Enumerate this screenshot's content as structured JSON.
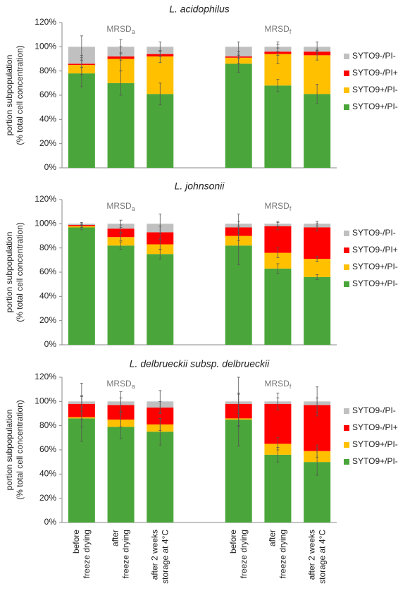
{
  "categories": [
    [
      "before",
      "freeze drying"
    ],
    [
      "after",
      "freeze drying"
    ],
    [
      "after 2 weeks",
      "storage at 4°C"
    ],
    null,
    [
      "before",
      "freeze drying"
    ],
    [
      "after",
      "freeze drying"
    ],
    [
      "after 2 weeks",
      "storage at 4°C"
    ]
  ],
  "chart_data": [
    {
      "type": "bar",
      "stacked": true,
      "title": "L. acidophilus",
      "ylabel": [
        "portion subpopulation",
        "(% total cell concentration)"
      ],
      "group_labels": [
        {
          "base": "MRSD",
          "subscript": "a"
        },
        {
          "base": "MRSD",
          "subscript": "f"
        }
      ],
      "ylim": [
        0,
        120
      ],
      "yticks": [
        {
          "value": 0,
          "label": "0%"
        },
        {
          "value": 20,
          "label": "20%"
        },
        {
          "value": 40,
          "label": "40%"
        },
        {
          "value": 60,
          "label": "60%"
        },
        {
          "value": 80,
          "label": "80%"
        },
        {
          "value": 100,
          "label": "100%"
        },
        {
          "value": 120,
          "label": "120%"
        }
      ],
      "series": [
        {
          "name": "SYTO9+/PI-",
          "color": "#4aa63a",
          "values": [
            78,
            70,
            61,
            null,
            86,
            68,
            61
          ],
          "errors": [
            11,
            10,
            9,
            null,
            7,
            5,
            8
          ]
        },
        {
          "name": "SYTO9+/PI-",
          "color": "#ffc000",
          "values": [
            7,
            20,
            31,
            null,
            5,
            26,
            32
          ],
          "errors": [
            8,
            10,
            5,
            null,
            5,
            8,
            4
          ]
        },
        {
          "name": "SYTO9-/PI+",
          "color": "#ff0000",
          "values": [
            1,
            2,
            2,
            null,
            1,
            2,
            3
          ],
          "errors": [
            3,
            3,
            2,
            null,
            2,
            3,
            2
          ]
        },
        {
          "name": "SYTO9-/PI-",
          "color": "#c0c0c0",
          "values": [
            14,
            8,
            6,
            null,
            8,
            4,
            4
          ],
          "errors": [
            9,
            6,
            4,
            null,
            4,
            4,
            4
          ]
        }
      ]
    },
    {
      "type": "bar",
      "stacked": true,
      "title": "L. johnsonii",
      "ylabel": [
        "portion subpopulation",
        "(% total cell concentration)"
      ],
      "group_labels": [
        {
          "base": "MRSD",
          "subscript": "a"
        },
        {
          "base": "MRSD",
          "subscript": "f"
        }
      ],
      "ylim": [
        0,
        120
      ],
      "yticks": [
        {
          "value": 0,
          "label": "0%"
        },
        {
          "value": 20,
          "label": "20%"
        },
        {
          "value": 40,
          "label": "40%"
        },
        {
          "value": 60,
          "label": "60%"
        },
        {
          "value": 80,
          "label": "80%"
        },
        {
          "value": 100,
          "label": "100%"
        },
        {
          "value": 120,
          "label": "120%"
        }
      ],
      "series": [
        {
          "name": "SYTO9+/PI-",
          "color": "#4aa63a",
          "values": [
            97,
            82,
            75,
            null,
            82,
            63,
            56
          ],
          "errors": [
            2,
            3,
            4,
            null,
            16,
            4,
            2
          ]
        },
        {
          "name": "SYTO9+/PI-",
          "color": "#ffc000",
          "values": [
            1,
            7,
            8,
            null,
            8,
            13,
            15
          ],
          "errors": [
            1,
            3,
            4,
            null,
            4,
            4,
            2
          ]
        },
        {
          "name": "SYTO9-/PI+",
          "color": "#ff0000",
          "values": [
            1,
            7,
            10,
            null,
            7,
            22,
            26
          ],
          "errors": [
            1,
            3,
            5,
            null,
            5,
            3,
            3
          ]
        },
        {
          "name": "SYTO9-/PI-",
          "color": "#c0c0c0",
          "values": [
            1,
            4,
            7,
            null,
            3,
            2,
            3
          ],
          "errors": [
            1,
            3,
            8,
            null,
            8,
            2,
            2
          ]
        }
      ]
    },
    {
      "type": "bar",
      "stacked": true,
      "title": "L. delbrueckii subsp. delbrueckii",
      "ylabel": [
        "portion subpopulation",
        "(% total cell concentration)"
      ],
      "group_labels": [
        {
          "base": "MRSD",
          "subscript": "a"
        },
        {
          "base": "MRSD",
          "subscript": "f"
        }
      ],
      "ylim": [
        0,
        120
      ],
      "yticks": [
        {
          "value": 0,
          "label": "0%"
        },
        {
          "value": 20,
          "label": "20%"
        },
        {
          "value": 40,
          "label": "40%"
        },
        {
          "value": 60,
          "label": "60%"
        },
        {
          "value": 80,
          "label": "80%"
        },
        {
          "value": 100,
          "label": "100%"
        },
        {
          "value": 120,
          "label": "120%"
        }
      ],
      "series": [
        {
          "name": "SYTO9+/PI-",
          "color": "#4aa63a",
          "values": [
            86,
            79,
            75,
            null,
            85,
            56,
            50
          ],
          "errors": [
            19,
            10,
            11,
            null,
            22,
            6,
            11
          ]
        },
        {
          "name": "SYTO9+/PI-",
          "color": "#ffc000",
          "values": [
            1,
            6,
            6,
            null,
            1,
            9,
            9
          ],
          "errors": [
            8,
            6,
            5,
            null,
            7,
            5,
            5
          ]
        },
        {
          "name": "SYTO9-/PI+",
          "color": "#ff0000",
          "values": [
            11,
            12,
            14,
            null,
            12,
            33,
            38
          ],
          "errors": [
            6,
            6,
            5,
            null,
            8,
            5,
            6
          ]
        },
        {
          "name": "SYTO9-/PI-",
          "color": "#c0c0c0",
          "values": [
            2,
            3,
            5,
            null,
            2,
            2,
            3
          ],
          "errors": [
            15,
            8,
            9,
            null,
            20,
            7,
            12
          ]
        }
      ]
    }
  ]
}
